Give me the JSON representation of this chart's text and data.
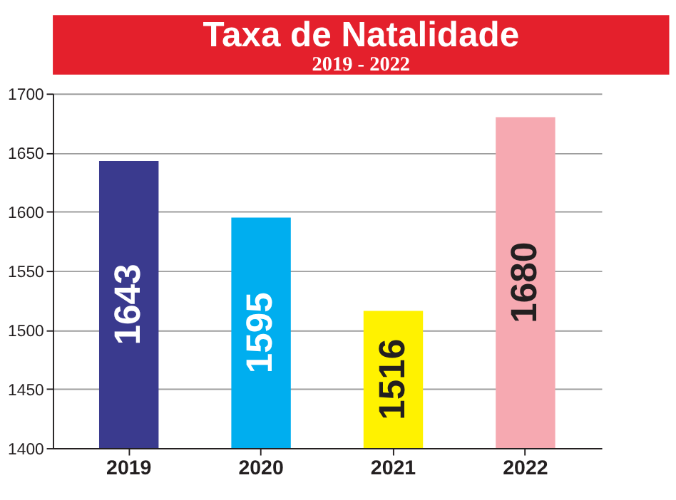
{
  "chart_data": {
    "type": "bar",
    "title": "Taxa de Natalidade",
    "subtitle": "2019 - 2022",
    "categories": [
      "2019",
      "2020",
      "2021",
      "2022"
    ],
    "values": [
      1643,
      1595,
      1516,
      1680
    ],
    "colors": [
      "#3a3a8e",
      "#00aeef",
      "#fff200",
      "#f6a9b1"
    ],
    "ylim": [
      1400,
      1700
    ],
    "yticks": [
      1400,
      1450,
      1500,
      1550,
      1600,
      1650,
      1700
    ],
    "grid": "y",
    "data_labels": true
  }
}
